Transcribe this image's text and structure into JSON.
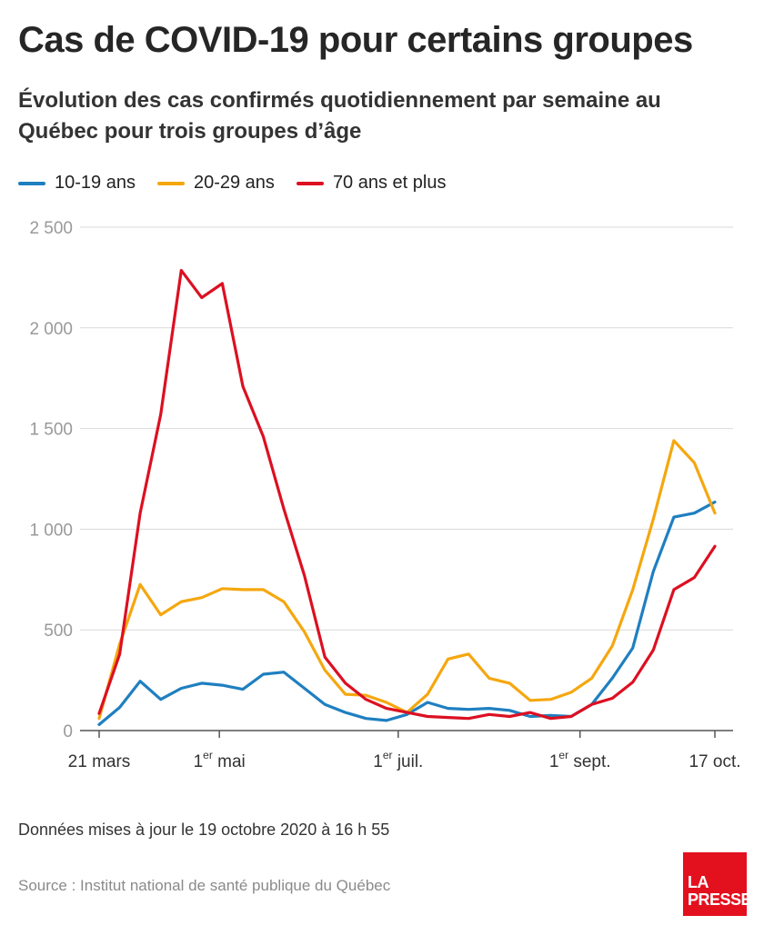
{
  "header": {
    "title": "Cas de COVID-19 pour certains groupes",
    "subtitle": "Évolution des cas confirmés quotidiennement par semaine au Québec pour trois groupes d’âge"
  },
  "footer": {
    "updated": "Données mises à jour le 19 octobre 2020 à 16 h 55",
    "source": "Source : Institut national de santé publique du Québec",
    "logo_line1": "LA",
    "logo_line2": "PRESSE"
  },
  "chart_data": {
    "type": "line",
    "ylim": [
      0,
      2500
    ],
    "yticks": [
      0,
      500,
      1000,
      1500,
      2000,
      2500
    ],
    "ytick_labels": [
      "0",
      "500",
      "1 000",
      "1 500",
      "2 000",
      "2 500"
    ],
    "grid": true,
    "legend_position": "top-left",
    "x": [
      "2020-03-21",
      "2020-03-28",
      "2020-04-04",
      "2020-04-11",
      "2020-04-18",
      "2020-04-25",
      "2020-05-02",
      "2020-05-09",
      "2020-05-16",
      "2020-05-23",
      "2020-05-30",
      "2020-06-06",
      "2020-06-13",
      "2020-06-20",
      "2020-06-27",
      "2020-07-04",
      "2020-07-11",
      "2020-07-18",
      "2020-07-25",
      "2020-08-01",
      "2020-08-08",
      "2020-08-15",
      "2020-08-22",
      "2020-08-29",
      "2020-09-05",
      "2020-09-12",
      "2020-09-19",
      "2020-09-26",
      "2020-10-03",
      "2020-10-10",
      "2020-10-17"
    ],
    "x_ticks": [
      {
        "date": "2020-03-21",
        "label": "21 mars",
        "sup": "",
        "rest": ""
      },
      {
        "date": "2020-05-01",
        "label": "1",
        "sup": "er",
        "rest": " mai"
      },
      {
        "date": "2020-07-01",
        "label": "1",
        "sup": "er",
        "rest": " juil."
      },
      {
        "date": "2020-09-01",
        "label": "1",
        "sup": "er",
        "rest": " sept."
      },
      {
        "date": "2020-10-17",
        "label": "17 oct.",
        "sup": "",
        "rest": ""
      }
    ],
    "series": [
      {
        "name": "10-19 ans",
        "color": "#1f7fc0",
        "values": [
          30,
          115,
          245,
          155,
          210,
          235,
          225,
          205,
          280,
          290,
          210,
          130,
          90,
          60,
          50,
          80,
          140,
          110,
          105,
          110,
          100,
          70,
          75,
          70,
          130,
          260,
          410,
          790,
          1060,
          1080,
          1135
        ]
      },
      {
        "name": "20-29 ans",
        "color": "#f5a70f",
        "values": [
          60,
          430,
          725,
          575,
          640,
          660,
          705,
          700,
          700,
          640,
          490,
          300,
          180,
          175,
          140,
          90,
          180,
          355,
          380,
          260,
          235,
          150,
          155,
          190,
          260,
          420,
          700,
          1050,
          1440,
          1330,
          1080
        ]
      },
      {
        "name": "70 ans et plus",
        "color": "#dc1021",
        "values": [
          85,
          380,
          1080,
          1570,
          2285,
          2150,
          2220,
          1710,
          1460,
          1100,
          770,
          365,
          235,
          155,
          110,
          90,
          70,
          65,
          60,
          80,
          70,
          90,
          60,
          70,
          130,
          160,
          240,
          400,
          700,
          760,
          915
        ]
      }
    ]
  }
}
